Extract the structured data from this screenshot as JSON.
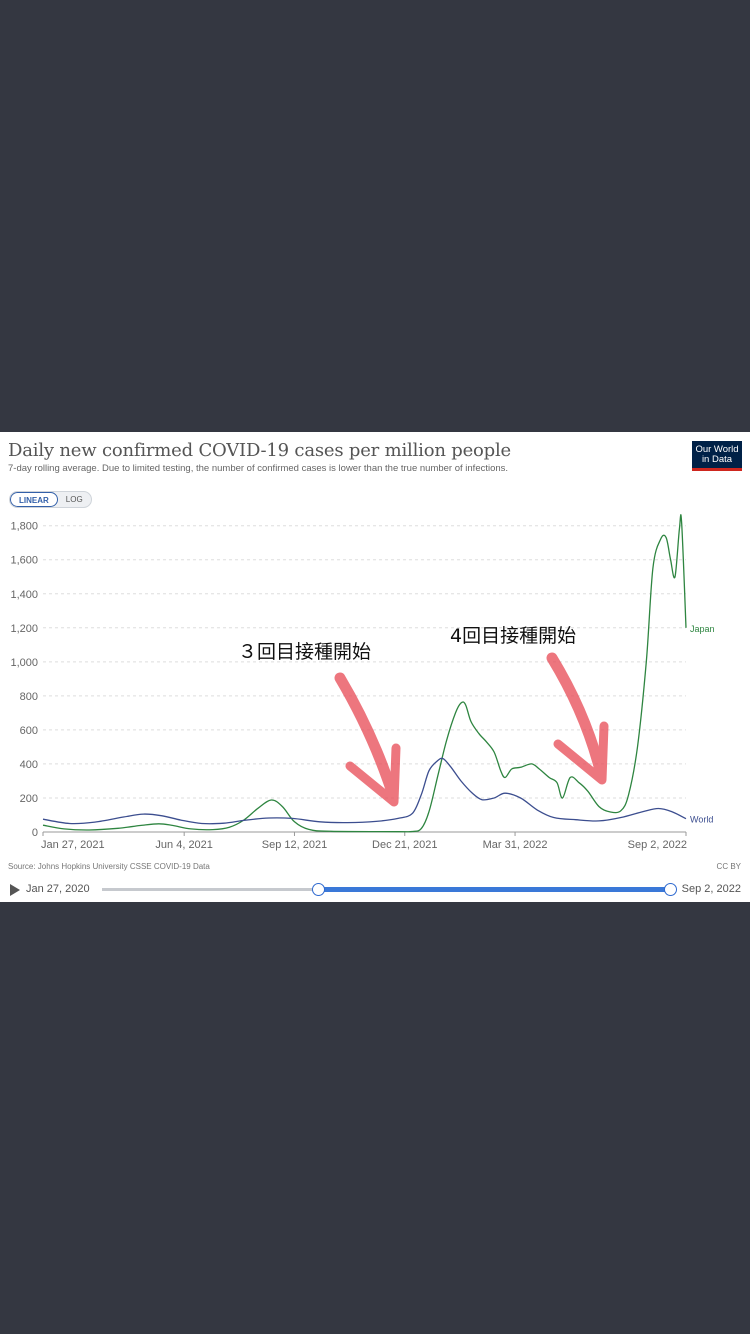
{
  "card": {
    "title": "Daily new confirmed COVID-19 cases per million people",
    "subtitle": "7-day rolling average. Due to limited testing, the number of confirmed cases is lower than the true number of infections.",
    "logo_line1": "Our World",
    "logo_line2": "in Data",
    "toggle_linear": "LINEAR",
    "toggle_log": "LOG",
    "source": "Source: Johns Hopkins University CSSE COVID-19 Data",
    "license": "CC BY"
  },
  "timeline": {
    "start_label": "Jan 27, 2020",
    "end_label": "Sep 2, 2022",
    "selection_start": 0.38,
    "selection_end": 1.0
  },
  "annotations": {
    "third_dose": "３回目接種開始",
    "fourth_dose": "4回目接種開始",
    "arrow_color": "#e8505b"
  },
  "chart_data": {
    "type": "line",
    "title": "Daily new confirmed COVID-19 cases per million people",
    "subtitle": "7-day rolling average. Due to limited testing, the number of confirmed cases is lower than the true number of infections.",
    "scale": "linear",
    "x_tick_labels": [
      "Jan 27, 2021",
      "Jun 4, 2021",
      "Sep 12, 2021",
      "Dec 21, 2021",
      "Mar 31, 2022",
      "Sep 2, 2022"
    ],
    "y_ticks": [
      0,
      200,
      400,
      600,
      800,
      1000,
      1200,
      1400,
      1600,
      1800
    ],
    "y_tick_labels": [
      "0",
      "200",
      "400",
      "600",
      "800",
      "1,000",
      "1,200",
      "1,400",
      "1,600",
      "1,800"
    ],
    "ylim": [
      0,
      1850
    ],
    "grid": true,
    "legend": "end-of-line labels",
    "series": [
      {
        "name": "Japan",
        "color": "#2e8540",
        "points": [
          [
            "2021-01-27",
            40
          ],
          [
            "2021-02-15",
            18
          ],
          [
            "2021-03-10",
            12
          ],
          [
            "2021-04-05",
            22
          ],
          [
            "2021-04-25",
            38
          ],
          [
            "2021-05-12",
            48
          ],
          [
            "2021-05-25",
            38
          ],
          [
            "2021-06-10",
            18
          ],
          [
            "2021-06-30",
            14
          ],
          [
            "2021-07-15",
            28
          ],
          [
            "2021-07-28",
            70
          ],
          [
            "2021-08-10",
            140
          ],
          [
            "2021-08-22",
            188
          ],
          [
            "2021-09-01",
            150
          ],
          [
            "2021-09-12",
            60
          ],
          [
            "2021-09-25",
            15
          ],
          [
            "2021-10-15",
            4
          ],
          [
            "2021-12-15",
            2
          ],
          [
            "2021-12-28",
            3
          ],
          [
            "2022-01-05",
            20
          ],
          [
            "2022-01-12",
            120
          ],
          [
            "2022-01-20",
            330
          ],
          [
            "2022-01-28",
            540
          ],
          [
            "2022-02-05",
            700
          ],
          [
            "2022-02-10",
            758
          ],
          [
            "2022-02-14",
            750
          ],
          [
            "2022-02-19",
            650
          ],
          [
            "2022-02-26",
            580
          ],
          [
            "2022-03-05",
            530
          ],
          [
            "2022-03-12",
            470
          ],
          [
            "2022-03-18",
            360
          ],
          [
            "2022-03-22",
            320
          ],
          [
            "2022-03-28",
            370
          ],
          [
            "2022-04-05",
            380
          ],
          [
            "2022-04-15",
            400
          ],
          [
            "2022-04-22",
            370
          ],
          [
            "2022-05-01",
            320
          ],
          [
            "2022-05-08",
            290
          ],
          [
            "2022-05-13",
            200
          ],
          [
            "2022-05-20",
            320
          ],
          [
            "2022-05-28",
            290
          ],
          [
            "2022-06-05",
            240
          ],
          [
            "2022-06-15",
            150
          ],
          [
            "2022-06-25",
            118
          ],
          [
            "2022-07-05",
            125
          ],
          [
            "2022-07-12",
            220
          ],
          [
            "2022-07-20",
            500
          ],
          [
            "2022-07-28",
            1000
          ],
          [
            "2022-08-03",
            1550
          ],
          [
            "2022-08-10",
            1720
          ],
          [
            "2022-08-15",
            1730
          ],
          [
            "2022-08-19",
            1600
          ],
          [
            "2022-08-23",
            1500
          ],
          [
            "2022-08-27",
            1780
          ],
          [
            "2022-08-29",
            1820
          ],
          [
            "2022-09-02",
            1200
          ]
        ]
      },
      {
        "name": "World",
        "color": "#3c4e8f",
        "points": [
          [
            "2021-01-27",
            75
          ],
          [
            "2021-02-20",
            50
          ],
          [
            "2021-03-15",
            58
          ],
          [
            "2021-04-10",
            88
          ],
          [
            "2021-04-28",
            105
          ],
          [
            "2021-05-15",
            95
          ],
          [
            "2021-06-01",
            70
          ],
          [
            "2021-06-20",
            50
          ],
          [
            "2021-07-10",
            52
          ],
          [
            "2021-07-30",
            70
          ],
          [
            "2021-08-20",
            82
          ],
          [
            "2021-09-10",
            80
          ],
          [
            "2021-10-05",
            60
          ],
          [
            "2021-10-30",
            55
          ],
          [
            "2021-11-25",
            62
          ],
          [
            "2021-12-15",
            80
          ],
          [
            "2021-12-28",
            110
          ],
          [
            "2022-01-05",
            220
          ],
          [
            "2022-01-12",
            360
          ],
          [
            "2022-01-20",
            420
          ],
          [
            "2022-01-25",
            430
          ],
          [
            "2022-02-01",
            380
          ],
          [
            "2022-02-10",
            300
          ],
          [
            "2022-02-20",
            230
          ],
          [
            "2022-03-01",
            190
          ],
          [
            "2022-03-12",
            200
          ],
          [
            "2022-03-22",
            228
          ],
          [
            "2022-04-05",
            200
          ],
          [
            "2022-04-20",
            130
          ],
          [
            "2022-05-05",
            85
          ],
          [
            "2022-05-25",
            72
          ],
          [
            "2022-06-15",
            65
          ],
          [
            "2022-07-05",
            85
          ],
          [
            "2022-07-25",
            120
          ],
          [
            "2022-08-08",
            138
          ],
          [
            "2022-08-20",
            120
          ],
          [
            "2022-09-02",
            78
          ]
        ]
      }
    ]
  }
}
